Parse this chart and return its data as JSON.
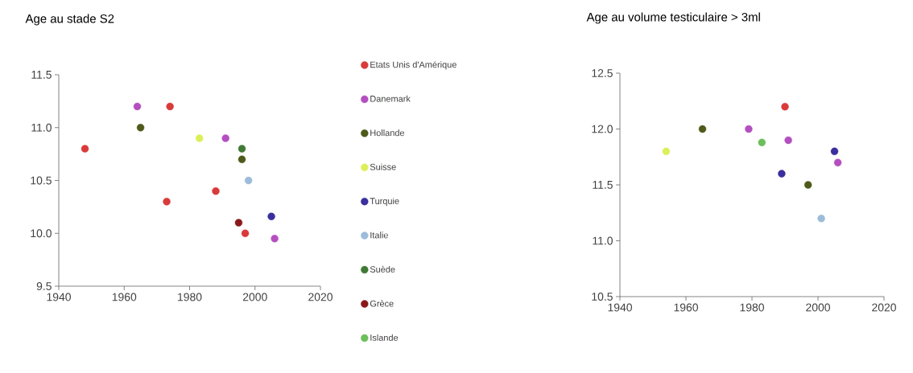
{
  "chart_data": [
    {
      "type": "scatter",
      "title": "Age au stade S2",
      "legend": "right",
      "xlim": [
        1940,
        2020
      ],
      "xticks": [
        1940,
        1960,
        1980,
        2000,
        2020
      ],
      "ylim": [
        9.5,
        11.5
      ],
      "yticks": [
        9.5,
        {
          "value": 10,
          "label": "10.0"
        },
        10.5,
        {
          "value": 11,
          "label": "11.0"
        },
        11.5
      ],
      "series": [
        {
          "name": "Etats Unis d'Amérique",
          "color": "#d93a3a",
          "x": [
            1948,
            1974,
            1973,
            1988,
            1997
          ],
          "values": [
            10.8,
            11.2,
            10.3,
            10.4,
            10.0
          ]
        },
        {
          "name": "Danemark",
          "color": "#b44fc0",
          "x": [
            1964,
            1991,
            2006
          ],
          "values": [
            11.2,
            10.9,
            9.95
          ]
        },
        {
          "name": "Hollande",
          "color": "#4d5a1a",
          "x": [
            1965,
            1996
          ],
          "values": [
            11.0,
            10.7
          ]
        },
        {
          "name": "Suisse",
          "color": "#dcef5a",
          "x": [
            1983
          ],
          "values": [
            10.9
          ]
        },
        {
          "name": "Turquie",
          "color": "#3a2f9c",
          "x": [
            2005
          ],
          "values": [
            10.16
          ]
        },
        {
          "name": "Italie",
          "color": "#9dbcd9",
          "x": [
            1998
          ],
          "values": [
            10.5
          ]
        },
        {
          "name": "Suède",
          "color": "#3f7a35",
          "x": [
            1996
          ],
          "values": [
            10.8
          ]
        },
        {
          "name": "Grèce",
          "color": "#8a1a1a",
          "x": [
            1995
          ],
          "values": [
            10.1
          ]
        },
        {
          "name": "Islande",
          "color": "#6cbf5a"
        }
      ]
    },
    {
      "type": "scatter",
      "title": "Age au volume testiculaire > 3ml",
      "xlim": [
        1940,
        2020
      ],
      "xticks": [
        1940,
        1960,
        1980,
        2000,
        2020
      ],
      "ylim": [
        10.5,
        12.5
      ],
      "yticks": [
        10.5,
        {
          "value": 11,
          "label": "11.0"
        },
        11.5,
        {
          "value": 12,
          "label": "12.0"
        },
        12.5
      ],
      "series": [
        {
          "color": "#d93a3a",
          "x": [
            1990
          ],
          "values": [
            12.2
          ]
        },
        {
          "color": "#b44fc0",
          "x": [
            1979,
            1991,
            2006
          ],
          "values": [
            12.0,
            11.9,
            11.7
          ]
        },
        {
          "color": "#4d5a1a",
          "x": [
            1965,
            1997
          ],
          "values": [
            12.0,
            11.5
          ]
        },
        {
          "color": "#dcef5a",
          "x": [
            1954
          ],
          "values": [
            11.8
          ]
        },
        {
          "color": "#3a2f9c",
          "x": [
            1989,
            2005
          ],
          "values": [
            11.6,
            11.8
          ]
        },
        {
          "color": "#9dbcd9",
          "x": [
            2001
          ],
          "values": [
            11.2
          ]
        },
        {
          "color": "#6cbf5a",
          "x": [
            1983
          ],
          "values": [
            11.88
          ]
        }
      ]
    }
  ]
}
